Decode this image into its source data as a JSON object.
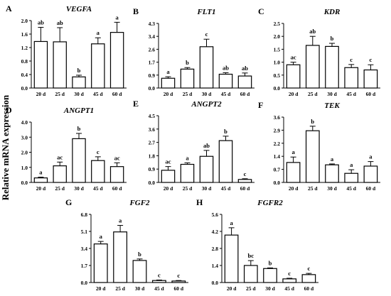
{
  "ylabel": "Relative mRNA expression",
  "chart_data": [
    {
      "letter": "A",
      "title": "VEGFA",
      "type": "bar",
      "categories": [
        "20 d",
        "25 d",
        "30 d",
        "45 d",
        "60 d"
      ],
      "values": [
        1.38,
        1.37,
        0.33,
        1.31,
        1.65
      ],
      "errors": [
        0.42,
        0.42,
        0.05,
        0.18,
        0.3
      ],
      "labels": [
        "ab",
        "ab",
        "b",
        "a",
        "a"
      ],
      "ylim": [
        0,
        2.0
      ],
      "ticks": [
        "0.0",
        "0.4",
        "0.8",
        "1.2",
        "1.6",
        "2.0"
      ]
    },
    {
      "letter": "B",
      "title": "FLT1",
      "type": "bar",
      "categories": [
        "20 d",
        "25 d",
        "30 d",
        "45 d",
        "60 d"
      ],
      "values": [
        0.65,
        1.26,
        2.75,
        0.92,
        0.8
      ],
      "errors": [
        0.1,
        0.1,
        0.5,
        0.1,
        0.2
      ],
      "labels": [
        "a",
        "b",
        "c",
        "ab",
        "ab"
      ],
      "ylim": [
        0,
        4.3
      ],
      "ticks": [
        "0.0",
        "0.9",
        "1.7",
        "2.6",
        "3.4",
        "4.3"
      ]
    },
    {
      "letter": "C",
      "title": "KDR",
      "type": "bar",
      "categories": [
        "20 d",
        "25 d",
        "30 d",
        "45 d",
        "60 d"
      ],
      "values": [
        0.9,
        1.65,
        1.61,
        0.79,
        0.7
      ],
      "errors": [
        0.1,
        0.35,
        0.12,
        0.12,
        0.2
      ],
      "labels": [
        "ac",
        "ab",
        "b",
        "c",
        "c"
      ],
      "ylim": [
        0,
        2.5
      ],
      "ticks": [
        "0.0",
        "0.5",
        "1.0",
        "1.5",
        "2.0",
        "2.5"
      ]
    },
    {
      "letter": "D",
      "title": "ANGPT1",
      "type": "bar",
      "categories": [
        "20 d",
        "25 d",
        "30 d",
        "45 d",
        "60 d"
      ],
      "values": [
        0.3,
        1.1,
        2.9,
        1.45,
        1.05
      ],
      "errors": [
        0.05,
        0.25,
        0.35,
        0.25,
        0.25
      ],
      "labels": [
        "a",
        "ac",
        "b",
        "c",
        "ac"
      ],
      "ylim": [
        0,
        4.0
      ],
      "ticks": [
        "0.0",
        "1.0",
        "2.0",
        "3.0",
        "4.0"
      ]
    },
    {
      "letter": "E",
      "title": "ANGPT2",
      "type": "bar",
      "categories": [
        "20 d",
        "25 d",
        "30 d",
        "45 d",
        "60 d"
      ],
      "values": [
        0.82,
        1.22,
        1.76,
        2.82,
        0.2
      ],
      "errors": [
        0.25,
        0.1,
        0.4,
        0.3,
        0.05
      ],
      "labels": [
        "ac",
        "a",
        "ab",
        "b",
        "c"
      ],
      "ylim": [
        0,
        4.5
      ],
      "ticks": [
        "0.0",
        "0.9",
        "1.8",
        "2.7",
        "3.6",
        "4.5"
      ]
    },
    {
      "letter": "F",
      "title": "TEK",
      "type": "bar",
      "categories": [
        "20 d",
        "25 d",
        "30 d",
        "45 d",
        "60 d"
      ],
      "values": [
        1.1,
        2.85,
        0.97,
        0.5,
        0.9
      ],
      "errors": [
        0.3,
        0.25,
        0.05,
        0.2,
        0.25
      ],
      "labels": [
        "a",
        "b",
        "a",
        "a",
        "a"
      ],
      "ylim": [
        0,
        3.6
      ],
      "ticks": [
        "0.0",
        "0.7",
        "1.4",
        "2.2",
        "2.9",
        "3.6"
      ]
    },
    {
      "letter": "G",
      "title": "FGF2",
      "type": "bar",
      "categories": [
        "20 d",
        "25 d",
        "30 d",
        "45 d",
        "60 d"
      ],
      "values": [
        3.85,
        5.05,
        2.2,
        0.2,
        0.15
      ],
      "errors": [
        0.25,
        0.65,
        0.15,
        0.05,
        0.05
      ],
      "labels": [
        "a",
        "a",
        "b",
        "c",
        "c"
      ],
      "ylim": [
        0,
        6.8
      ],
      "ticks": [
        "0.0",
        "1.7",
        "3.4",
        "5.1",
        "6.8"
      ]
    },
    {
      "letter": "H",
      "title": "FGFR2",
      "type": "bar",
      "categories": [
        "20 d",
        "25 d",
        "30 d",
        "45 d",
        "60 d"
      ],
      "values": [
        3.9,
        1.4,
        1.15,
        0.3,
        0.65
      ],
      "errors": [
        0.6,
        0.4,
        0.05,
        0.05,
        0.1
      ],
      "labels": [
        "a",
        "bc",
        "b",
        "c",
        "c"
      ],
      "ylim": [
        0,
        5.6
      ],
      "ticks": [
        "0.0",
        "1.4",
        "2.8",
        "4.2",
        "5.6"
      ]
    }
  ]
}
